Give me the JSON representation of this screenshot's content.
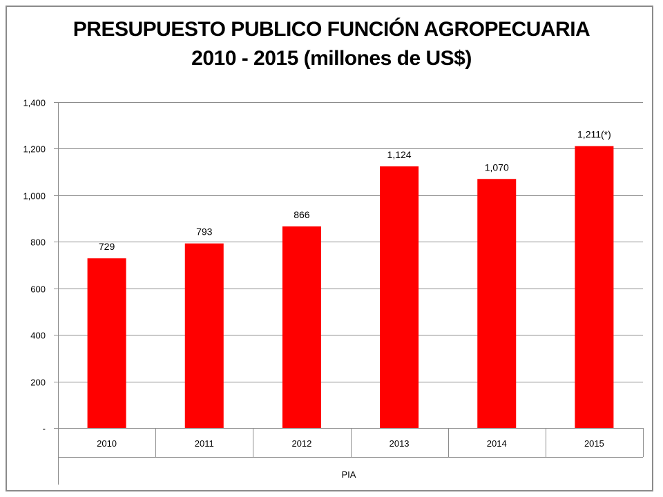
{
  "chart_data": {
    "type": "bar",
    "title_line1": "PRESUPUESTO PUBLICO FUNCIÓN AGROPECUARIA",
    "title_line2": "2010 - 2015 (millones de US$)",
    "categories": [
      "2010",
      "2011",
      "2012",
      "2013",
      "2014",
      "2015"
    ],
    "values": [
      729,
      793,
      866,
      1124,
      1070,
      1211
    ],
    "data_labels": [
      "729",
      "793",
      "866",
      "1,124",
      "1,070",
      "1,211(*)"
    ],
    "group_label": "PIA",
    "ylim": [
      0,
      1400
    ],
    "yticks": [
      0,
      200,
      400,
      600,
      800,
      1000,
      1200,
      1400
    ],
    "ytick_labels": [
      "-",
      "200",
      "400",
      "600",
      "800",
      "1,000",
      "1,200",
      "1,400"
    ],
    "grid": true,
    "bar_color": "#ff0000"
  }
}
